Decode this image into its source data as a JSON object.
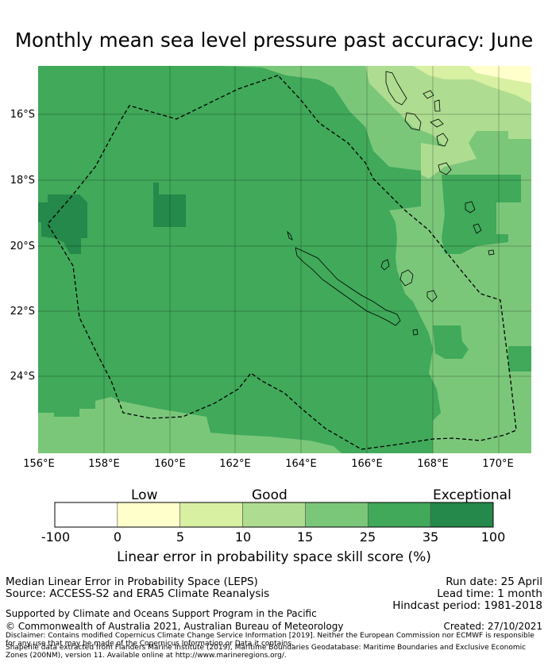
{
  "title": "Monthly mean sea level pressure past accuracy: June",
  "map": {
    "lat_labels": [
      "16°S",
      "18°S",
      "20°S",
      "22°S",
      "24°S"
    ],
    "lon_labels": [
      "156°E",
      "158°E",
      "160°E",
      "162°E",
      "164°E",
      "166°E",
      "168°E",
      "170°E"
    ],
    "colors": {
      "dark_green": "#24894a",
      "green": "#40a95a",
      "mid_green": "#7bc77a",
      "light_green": "#aedd91",
      "pale_green": "#d8f0a2",
      "pale_yellow": "#ffffcc"
    }
  },
  "colorbar": {
    "categories": [
      "Low",
      "Good",
      "Exceptional"
    ],
    "ticks": [
      "-100",
      "0",
      "5",
      "10",
      "15",
      "25",
      "35",
      "100"
    ],
    "colors": [
      "#ffffff",
      "#ffffcc",
      "#d8f0a2",
      "#aedd91",
      "#7bc77a",
      "#40a95a",
      "#24894a"
    ],
    "title": "Linear error in probability space skill score (%)"
  },
  "info": {
    "method": "Median Linear Error in Probability Space (LEPS)",
    "source": "Source: ACCESS-S2 and ERA5 Climate Reanalysis",
    "run_date": "Run date: 25 April",
    "lead_time": "Lead time: 1 month",
    "hindcast": "Hindcast period: 1981-2018",
    "support": "Supported by Climate and Oceans Support Program in the Pacific",
    "copyright": "© Commonwealth of Australia 2021, Australian Bureau of Meteorology",
    "created": "Created: 27/10/2021",
    "disclaimer": "Disclaimer: Contains modified Copernicus Climate Change Service Information [2019]. Neither the European Commission nor ECMWF is responsible for any use that may be made of the Copernicus Information or Data it contains.",
    "shapefile": "Shapefile data extracted from Flanders Marine Institute (2019), Maritime Boundaries Geodatabase: Maritime Boundaries and Exclusive Economic Zones (200NM), version 11. Available online at http://www.marineregions.org/."
  }
}
